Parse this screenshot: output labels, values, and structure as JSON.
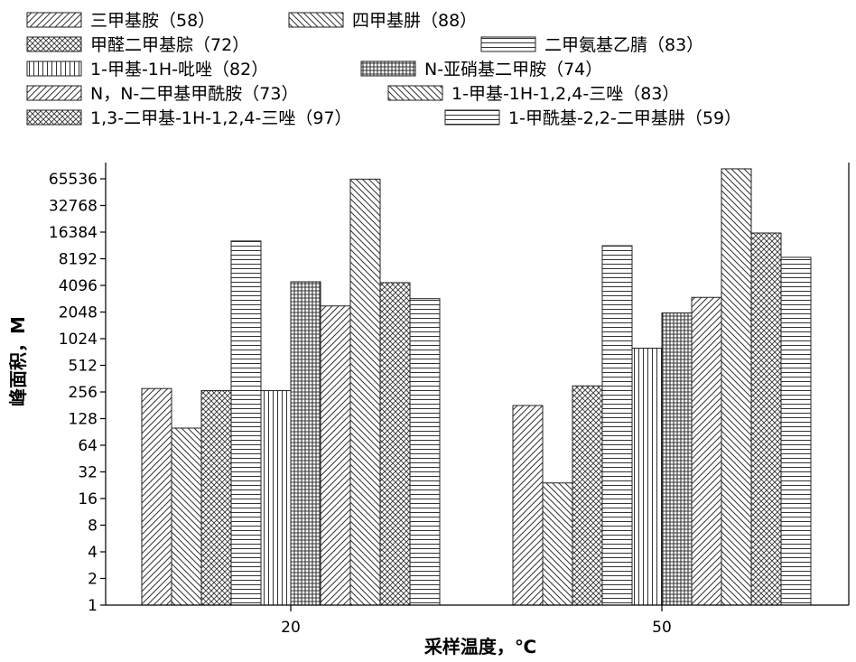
{
  "chart_data": {
    "type": "bar",
    "scale": "log2",
    "xlabel": "采样温度，℃",
    "ylabel": "峰面积，M",
    "categories": [
      "20",
      "50"
    ],
    "ylim": [
      1,
      65536
    ],
    "yticks": [
      1,
      2,
      4,
      8,
      16,
      32,
      64,
      128,
      256,
      512,
      1024,
      2048,
      4096,
      8192,
      16384,
      32768,
      65536
    ],
    "legend_position": "top",
    "series": [
      {
        "name": "三甲基胺（58）",
        "pattern": "fwd-diag",
        "values": [
          280,
          180
        ]
      },
      {
        "name": "四甲基肼（88）",
        "pattern": "back-diag",
        "values": [
          100,
          24
        ]
      },
      {
        "name": "甲醛二甲基腙（72）",
        "pattern": "crosshatch-diag",
        "values": [
          265,
          300
        ]
      },
      {
        "name": "二甲氨基乙腈（83）",
        "pattern": "horizontal",
        "values": [
          13000,
          11500
        ]
      },
      {
        "name": "1-甲基-1H-吡唑（82）",
        "pattern": "vertical",
        "values": [
          265,
          800
        ]
      },
      {
        "name": "N-亚硝基二甲胺（74）",
        "pattern": "grid",
        "values": [
          4500,
          2000
        ]
      },
      {
        "name": "N，N-二甲基甲酰胺（73）",
        "pattern": "fwd-diag",
        "values": [
          2400,
          3000
        ]
      },
      {
        "name": "1-甲基-1H-1,2,4-三唑（83）",
        "pattern": "back-diag",
        "values": [
          65000,
          85000
        ]
      },
      {
        "name": "1,3-二甲基-1H-1,2,4-三唑（97）",
        "pattern": "crosshatch-diag",
        "values": [
          4400,
          16000
        ]
      },
      {
        "name": "1-甲酰基-2,2-二甲基肼（59）",
        "pattern": "horizontal",
        "values": [
          2900,
          8500
        ]
      }
    ]
  }
}
